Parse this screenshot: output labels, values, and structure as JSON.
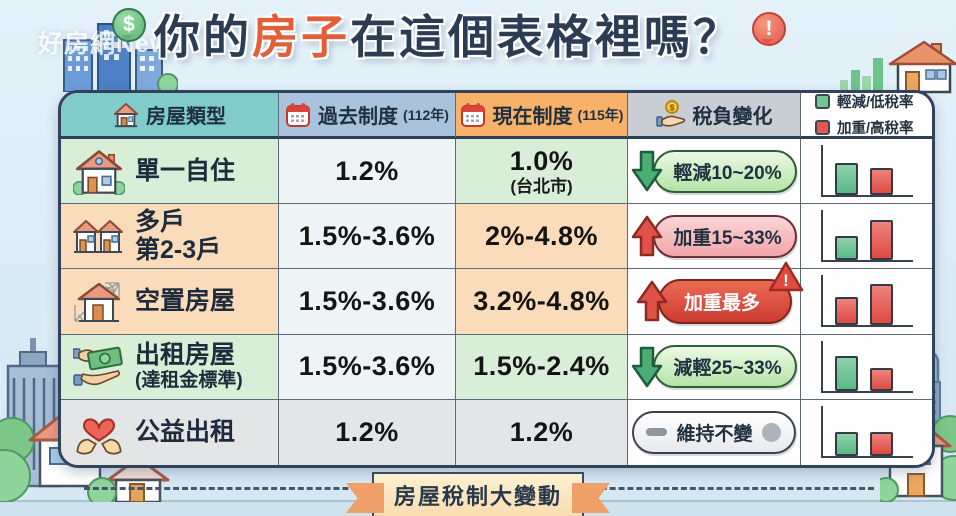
{
  "watermark": "好房網News",
  "title": {
    "prefix": "你的",
    "highlight": "房子",
    "suffix": "在這個表格裡嗎？"
  },
  "title_icons": {
    "money_bubble": "$",
    "alert_bubble": "!"
  },
  "legend": {
    "items": [
      {
        "label": "輕減/低稅率",
        "color": "#72c892"
      },
      {
        "label": "加重/高稅率",
        "color": "#e2574f"
      }
    ]
  },
  "table": {
    "headers": {
      "type": {
        "label": "房屋類型",
        "icon": "house-icon"
      },
      "past": {
        "label": "過去制度",
        "year": "(112年)",
        "icon": "calendar-icon"
      },
      "current": {
        "label": "現在制度",
        "year": "(115年)",
        "icon": "calendar-icon"
      },
      "change": {
        "label": "稅負變化",
        "icon": "coin-hand-icon"
      }
    },
    "rows": [
      {
        "type": "單一自住",
        "past": "1.2%",
        "current": "1.0%",
        "current_sub": "(台北市)",
        "change": "輕減10~20%",
        "change_direction": "down",
        "theme": "green",
        "bars": [
          {
            "color": "green",
            "value": 64
          },
          {
            "color": "red",
            "value": 54
          }
        ]
      },
      {
        "type": "多戶",
        "type_sub": "第2-3戶",
        "past": "1.5%-3.6%",
        "current": "2%-4.8%",
        "change": "加重15~33%",
        "change_direction": "up",
        "theme": "peach",
        "bars": [
          {
            "color": "green",
            "value": 48
          },
          {
            "color": "red",
            "value": 80
          }
        ]
      },
      {
        "type": "空置房屋",
        "past": "1.5%-3.6%",
        "current": "3.2%-4.8%",
        "change": "加重最多",
        "change_direction": "up",
        "change_warning": "!",
        "theme": "peach",
        "bars": [
          {
            "color": "red",
            "value": 56
          },
          {
            "color": "red",
            "value": 82
          }
        ]
      },
      {
        "type": "出租房屋",
        "type_sub": "(達租金標準)",
        "past": "1.5%-3.6%",
        "current": "1.5%-2.4%",
        "change": "減輕25~33%",
        "change_direction": "down",
        "theme": "green",
        "bars": [
          {
            "color": "green",
            "value": 70
          },
          {
            "color": "red",
            "value": 45
          }
        ]
      },
      {
        "type": "公益出租",
        "past": "1.2%",
        "current": "1.2%",
        "change": "維持不變",
        "change_direction": "none",
        "theme": "gray",
        "bars": [
          {
            "color": "green",
            "value": 48
          },
          {
            "color": "red",
            "value": 48
          }
        ]
      }
    ]
  },
  "footer": {
    "ribbon": "房屋稅制大變動"
  },
  "colors": {
    "header_type": "#7fccca",
    "header_past": "#a9c3dd",
    "header_current": "#f8b169",
    "header_change": "#c9ced4",
    "row_green": "#d8eed6",
    "row_peach": "#fbdcba",
    "row_gray": "#e4e5e7",
    "bar_green": "#6cc292",
    "bar_red": "#e2574f",
    "title_navy": "#2b3c55",
    "title_orange": "#e1603a"
  }
}
